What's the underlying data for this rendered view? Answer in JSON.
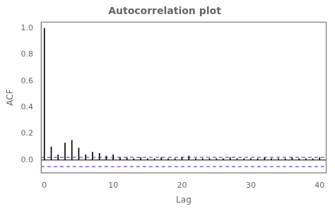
{
  "chart_data": {
    "type": "bar",
    "title": "Autocorrelation plot",
    "x_label": "Lag",
    "y_label": "ACF",
    "x": [
      0,
      1,
      2,
      3,
      4,
      5,
      6,
      7,
      8,
      9,
      10,
      11,
      12,
      13,
      14,
      15,
      16,
      17,
      18,
      19,
      20,
      21,
      22,
      23,
      24,
      25,
      26,
      27,
      28,
      29,
      30,
      31,
      32,
      33,
      34,
      35,
      36,
      37,
      38,
      39,
      40
    ],
    "values": [
      1.0,
      0.1,
      0.04,
      0.13,
      0.15,
      0.09,
      0.04,
      0.06,
      0.05,
      0.03,
      0.04,
      0.02,
      0.02,
      0.01,
      0.02,
      0.01,
      0.01,
      0.02,
      0.01,
      0.01,
      0.02,
      0.03,
      0.01,
      0.01,
      0.01,
      0.01,
      0.01,
      0.02,
      0.01,
      0.01,
      0.01,
      0.01,
      0.02,
      0.01,
      0.01,
      0.01,
      0.02,
      0.01,
      0.01,
      0.01,
      0.02
    ],
    "color": "#000000",
    "hlines": [
      {
        "y": 0.02,
        "color": "#2222cc",
        "line_style": "dashed"
      },
      {
        "y": -0.05,
        "color": "#2222cc",
        "line_style": "dashed"
      },
      {
        "y": 0,
        "color": "#000000",
        "line_style": "solid"
      }
    ],
    "xlim": [
      -0.5,
      41
    ],
    "ylim": [
      -0.1,
      1.05
    ],
    "xticks": [
      0,
      10,
      20,
      30,
      40
    ],
    "yticks": [
      {
        "value": 0,
        "label": "0.0"
      },
      0.2,
      0.4,
      0.6,
      0.8,
      {
        "value": 1,
        "label": "1.0"
      }
    ],
    "grid": false
  }
}
